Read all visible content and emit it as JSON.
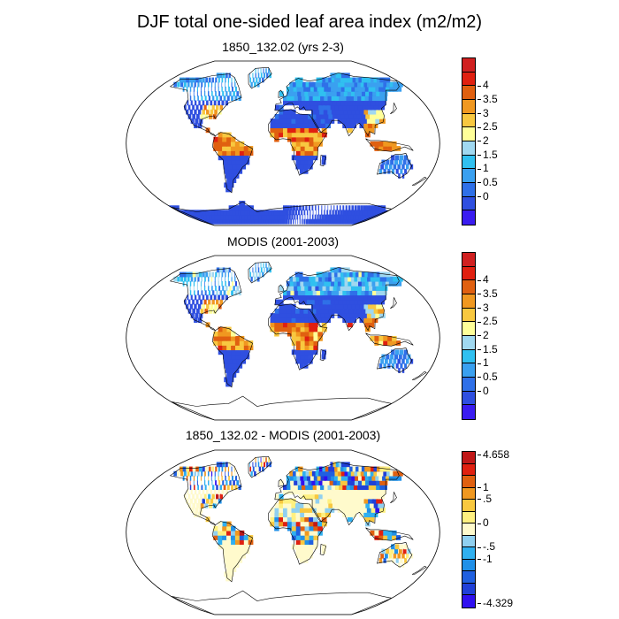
{
  "title": "DJF total one-sided leaf area index (m2/m2)",
  "panels": [
    {
      "title": "1850_132.02 (yrs 2-3)",
      "palette": "lai",
      "colors": [
        "#3a1cf0",
        "#2f4fe0",
        "#2f70e8",
        "#3aa0f0",
        "#30c0f0",
        "#a0d8f0",
        "#ffff99",
        "#f8c840",
        "#f09820",
        "#e06010",
        "#e02010",
        "#d02020"
      ],
      "labels": [
        "4",
        "3.5",
        "3",
        "2.5",
        "2",
        "1.5",
        "1",
        "0.5",
        "0"
      ]
    },
    {
      "title": "MODIS (2001-2003)",
      "palette": "lai",
      "colors": [
        "#3a1cf0",
        "#2f4fe0",
        "#2f70e8",
        "#3aa0f0",
        "#30c0f0",
        "#a0d8f0",
        "#ffff99",
        "#f8c840",
        "#f09820",
        "#e06010",
        "#e02010",
        "#d02020"
      ],
      "labels": [
        "4",
        "3.5",
        "3",
        "2.5",
        "2",
        "1.5",
        "1",
        "0.5",
        "0"
      ]
    },
    {
      "title": "1850_132.02 - MODIS (2001-2003)",
      "palette": "diff",
      "colors": [
        "#3010f0",
        "#2040d8",
        "#2060e0",
        "#2090e8",
        "#30b0f0",
        "#90d0f0",
        "#fffacc",
        "#fff080",
        "#f8c840",
        "#f09820",
        "#e06010",
        "#e02010",
        "#c01818"
      ],
      "labels": [
        "4.658",
        "1",
        ".5",
        "0",
        "-.5",
        "-1",
        "-4.329"
      ]
    }
  ]
}
